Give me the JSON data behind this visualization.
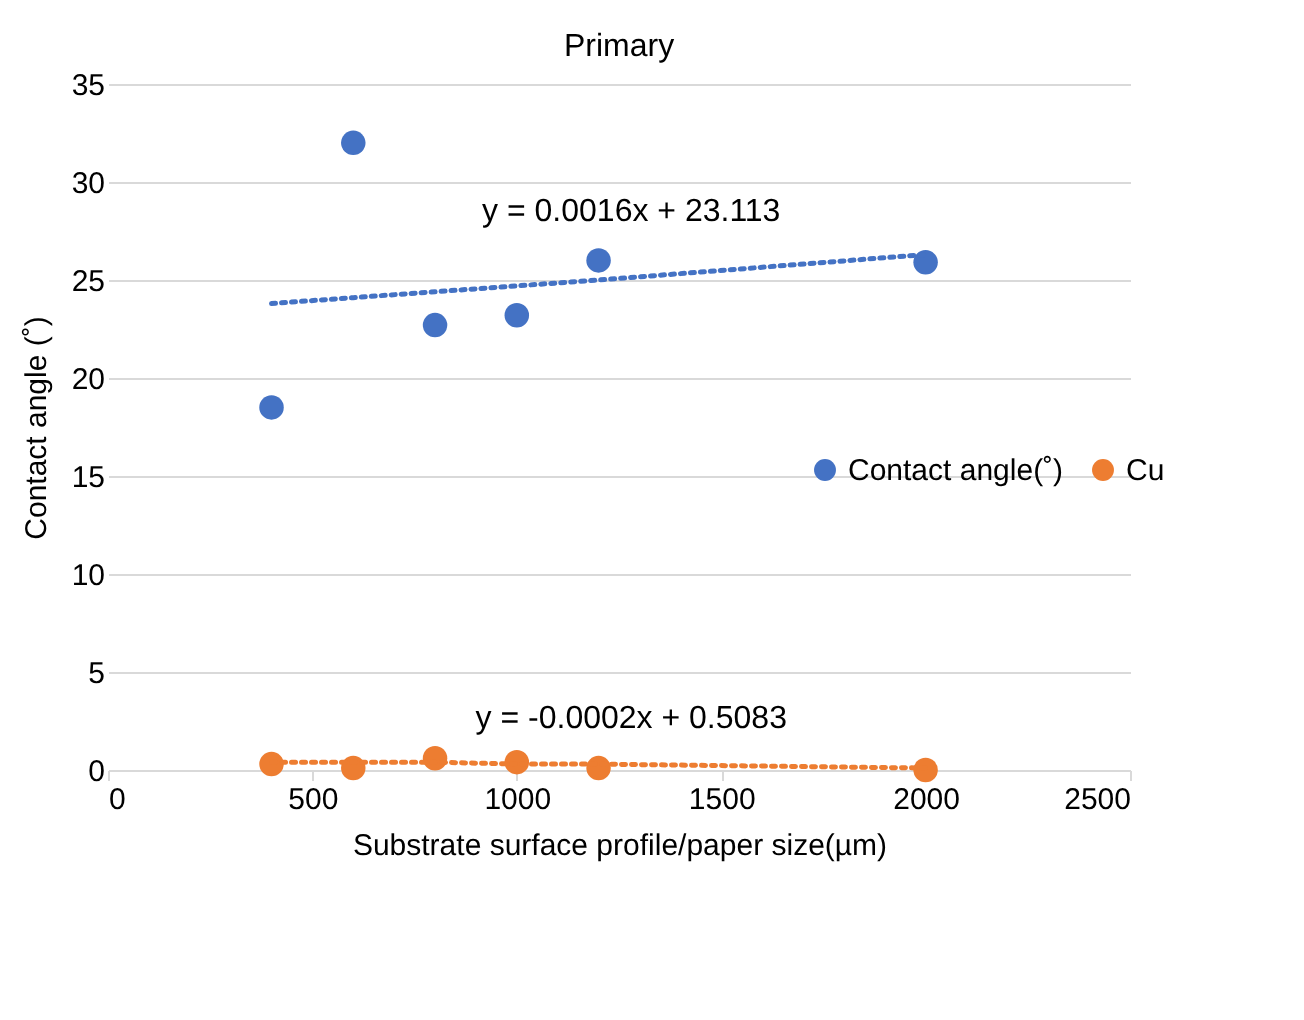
{
  "chart_data": {
    "type": "scatter",
    "title": "Primary",
    "xlabel": "Substrate surface profile/paper size(µm)",
    "ylabel": "Contact angle (˚)",
    "x": [
      400,
      600,
      800,
      1000,
      1200,
      2000
    ],
    "series": [
      {
        "name": "Contact angle(˚)",
        "color": "#4472c4",
        "marker": "circle",
        "values": [
          18.5,
          32.0,
          22.7,
          23.2,
          26.0,
          25.9
        ]
      },
      {
        "name": "Cu",
        "color": "#ed7d31",
        "marker": "circle",
        "values": [
          0.3,
          0.1,
          0.6,
          0.4,
          0.1,
          0.0
        ]
      },
      {
        "type": "line",
        "color": "#4472c4",
        "line_style": "dotted",
        "marker": "none",
        "values": [
          23.8,
          24.1,
          24.4,
          24.7,
          25.0,
          26.3
        ]
      },
      {
        "type": "line",
        "color": "#ed7d31",
        "line_style": "dotted",
        "marker": "none",
        "values": [
          0.4,
          0.4,
          0.4,
          0.3,
          0.3,
          0.1
        ]
      }
    ],
    "annotations": [
      "y = 0.0016x + 23.113",
      "y = -0.0002x + 0.5083"
    ],
    "xlim": [
      0,
      2500
    ],
    "xticks": [
      0,
      500,
      1000,
      1500,
      2000,
      2500
    ],
    "ylim": [
      0,
      35
    ],
    "yticks": [
      0,
      5,
      10,
      15,
      20,
      25,
      30,
      35
    ],
    "grid": "y",
    "legend": "right"
  }
}
